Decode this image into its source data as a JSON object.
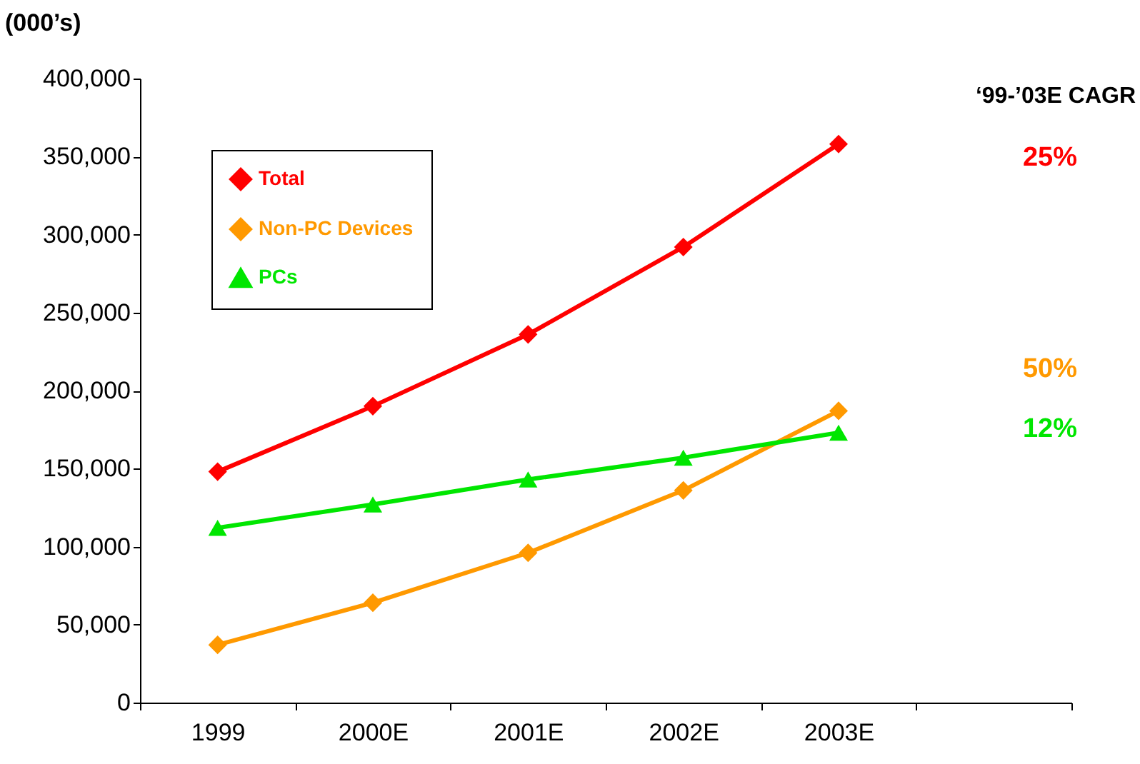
{
  "chart_data": {
    "type": "line",
    "ylabel": "(000’s)",
    "categories": [
      "1999",
      "2000E",
      "2001E",
      "2002E",
      "2003E",
      null
    ],
    "series": [
      {
        "name": "Total",
        "color": "#ff0000",
        "marker": "diamond",
        "values": [
          148000,
          190000,
          236000,
          292000,
          358000,
          null
        ]
      },
      {
        "name": "Non-PC Devices",
        "color": "#ff9900",
        "marker": "diamond",
        "values": [
          37000,
          64000,
          96000,
          136000,
          187000,
          null
        ]
      },
      {
        "name": "PCs",
        "color": "#00e600",
        "marker": "triangle",
        "values": [
          112000,
          127000,
          143000,
          157000,
          173000,
          null
        ]
      }
    ],
    "ylim": [
      0,
      400000
    ],
    "yticks": [
      0,
      {
        "value": 50000,
        "label": "50,000"
      },
      {
        "value": 100000,
        "label": "100,000"
      },
      {
        "value": 150000,
        "label": "150,000"
      },
      {
        "value": 200000,
        "label": "200,000"
      },
      {
        "value": 250000,
        "label": "250,000"
      },
      {
        "value": 300000,
        "label": "300,000"
      },
      {
        "value": 350000,
        "label": "350,000"
      },
      {
        "value": 400000,
        "label": "400,000"
      }
    ],
    "annotations": [
      "‘99-’03E CAGR",
      "25%",
      "50%",
      "12%"
    ],
    "legend": "top left",
    "grid": false
  }
}
